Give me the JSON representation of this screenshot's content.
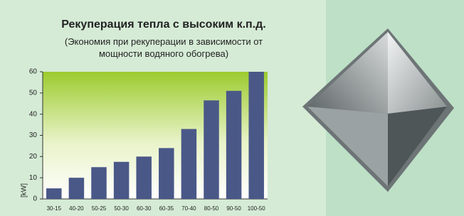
{
  "chart_data": {
    "type": "bar",
    "title": "Рекуперация тепла с высоким к.п.д.",
    "subtitle": "(Экономия при рекуперации в зависимости от мощности водяного обогрева)",
    "y_label": "[kW]",
    "categories": [
      "30-15",
      "40-20",
      "50-25",
      "50-30",
      "60-30",
      "60-35",
      "70-40",
      "80-50",
      "90-50",
      "100-50"
    ],
    "values": [
      5,
      10,
      15,
      17.5,
      20,
      24,
      33,
      46.5,
      51,
      60
    ],
    "color": "#4a5888",
    "ylim": [
      0,
      60
    ],
    "yticks": [
      0,
      10,
      20,
      30,
      40,
      50,
      60
    ],
    "grid": false
  }
}
